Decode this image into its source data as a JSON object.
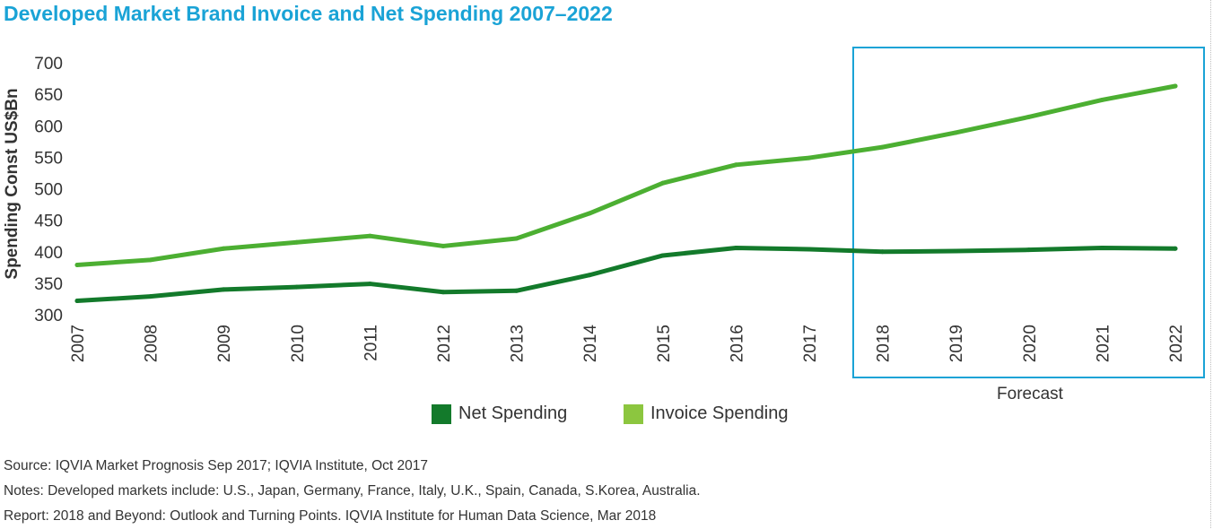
{
  "title": "Developed Market Brand Invoice and Net Spending 2007–2022",
  "forecast_label": "Forecast",
  "notes": {
    "source": "Source: IQVIA Market Prognosis Sep 2017; IQVIA Institute, Oct 2017",
    "developed": "Notes: Developed markets include: U.S., Japan, Germany, France, Italy, U.K., Spain, Canada, S.Korea, Australia.",
    "report": "Report: 2018 and Beyond: Outlook and Turning Points. IQVIA Institute for Human Data Science, Mar 2018"
  },
  "colors": {
    "title": "#1aa3d6",
    "net": "#137a2b",
    "invoice": "#4caf32",
    "invoice_swatch": "#8cc63f",
    "forecast_box": "#1aa3d6"
  },
  "chart_data": {
    "type": "line",
    "title": "Developed Market Brand Invoice and Net Spending 2007–2022",
    "xlabel": "",
    "ylabel": "Spending Const US$Bn",
    "x": [
      "2007",
      "2008",
      "2009",
      "2010",
      "2011",
      "2012",
      "2013",
      "2014",
      "2015",
      "2016",
      "2017",
      "2018",
      "2019",
      "2020",
      "2021",
      "2022"
    ],
    "ylim": [
      300,
      700
    ],
    "yticks": [
      300,
      350,
      400,
      450,
      500,
      550,
      600,
      650,
      700
    ],
    "grid": false,
    "legend": "bottom-center",
    "forecast_range": [
      "2018",
      "2022"
    ],
    "series": [
      {
        "name": "Net Spending",
        "color": "#137a2b",
        "values": [
          322,
          329,
          340,
          344,
          349,
          336,
          338,
          363,
          394,
          406,
          404,
          400,
          401,
          403,
          406,
          405
        ]
      },
      {
        "name": "Invoice Spending",
        "color": "#4caf32",
        "values": [
          379,
          387,
          405,
          415,
          425,
          409,
          421,
          461,
          509,
          538,
          549,
          566,
          589,
          614,
          641,
          663
        ]
      }
    ]
  }
}
